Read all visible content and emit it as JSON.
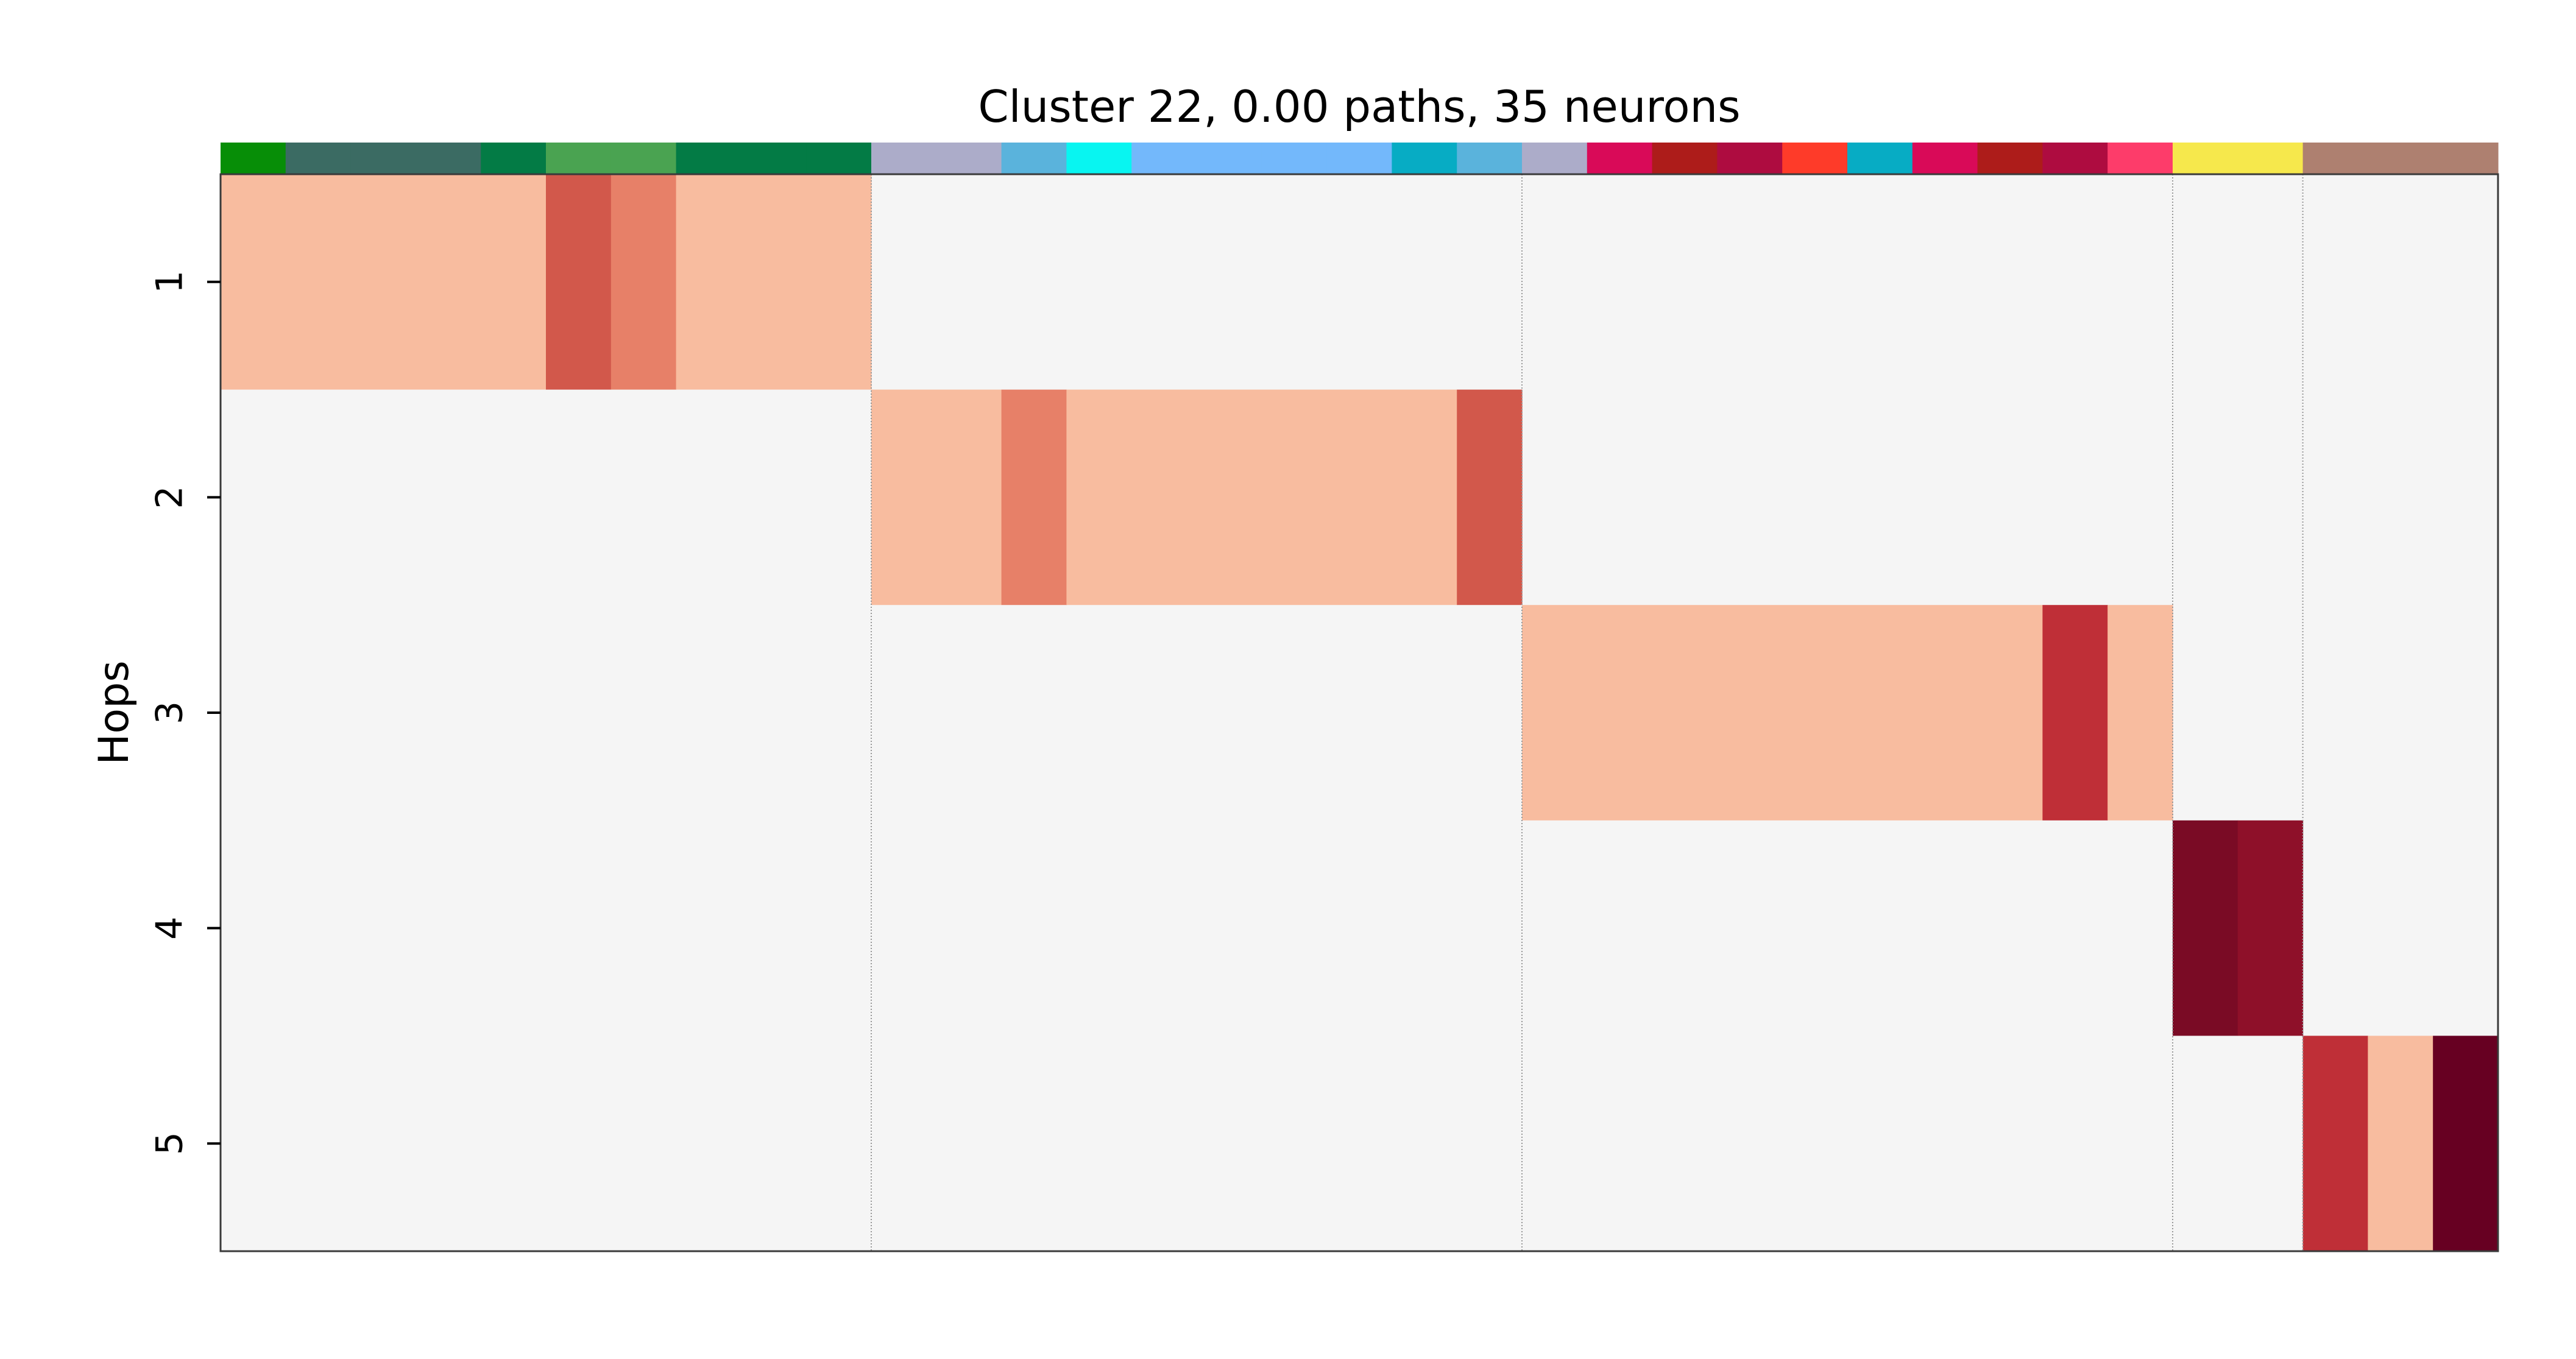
{
  "chart_data": {
    "type": "heatmap",
    "title": "Cluster 22, 0.00 paths, 35 neurons",
    "ylabel": "Hops",
    "xlabel": "",
    "y_ticks": [
      "1",
      "2",
      "3",
      "4",
      "5"
    ],
    "n_columns": 35,
    "group_separators_after_column": [
      10,
      20,
      30,
      32
    ],
    "background_color": "#f5f5f5",
    "header_colors": [
      "#078e07",
      "#3b6b63",
      "#3b6b63",
      "#3b6b63",
      "#037b45",
      "#4aa351",
      "#4aa351",
      "#037b45",
      "#037b45",
      "#037b45",
      "#acacc9",
      "#acacc9",
      "#5ab3dc",
      "#08f5f1",
      "#73b8fb",
      "#73b8fb",
      "#73b8fb",
      "#73b8fb",
      "#07acc4",
      "#5ab3dc",
      "#acacc9",
      "#d90a58",
      "#ad1c1a",
      "#ae0c40",
      "#fe3b29",
      "#07acc4",
      "#d90a58",
      "#ad1c1a",
      "#ae0c40",
      "#fd3c6a",
      "#f6e84c",
      "#f6e84c",
      "#ae8070",
      "#ae8070",
      "#ae8070"
    ],
    "cells": [
      {
        "hop": 1,
        "col_start": 0,
        "col_end": 5,
        "color": "#f8bc9f"
      },
      {
        "hop": 1,
        "col_start": 5,
        "col_end": 6,
        "color": "#d2584b"
      },
      {
        "hop": 1,
        "col_start": 6,
        "col_end": 7,
        "color": "#e78068"
      },
      {
        "hop": 1,
        "col_start": 7,
        "col_end": 10,
        "color": "#f8bc9f"
      },
      {
        "hop": 2,
        "col_start": 10,
        "col_end": 12,
        "color": "#f8bc9f"
      },
      {
        "hop": 2,
        "col_start": 12,
        "col_end": 13,
        "color": "#e78068"
      },
      {
        "hop": 2,
        "col_start": 13,
        "col_end": 19,
        "color": "#f8bc9f"
      },
      {
        "hop": 2,
        "col_start": 19,
        "col_end": 20,
        "color": "#d2584b"
      },
      {
        "hop": 3,
        "col_start": 20,
        "col_end": 28,
        "color": "#f8bc9f"
      },
      {
        "hop": 3,
        "col_start": 28,
        "col_end": 29,
        "color": "#bf2f37"
      },
      {
        "hop": 3,
        "col_start": 29,
        "col_end": 30,
        "color": "#f8bc9f"
      },
      {
        "hop": 4,
        "col_start": 30,
        "col_end": 31,
        "color": "#7a0b25"
      },
      {
        "hop": 4,
        "col_start": 31,
        "col_end": 32,
        "color": "#8e1029"
      },
      {
        "hop": 5,
        "col_start": 32,
        "col_end": 33,
        "color": "#bf2f37"
      },
      {
        "hop": 5,
        "col_start": 33,
        "col_end": 34,
        "color": "#f8bc9f"
      },
      {
        "hop": 5,
        "col_start": 34,
        "col_end": 35,
        "color": "#670022"
      }
    ]
  }
}
